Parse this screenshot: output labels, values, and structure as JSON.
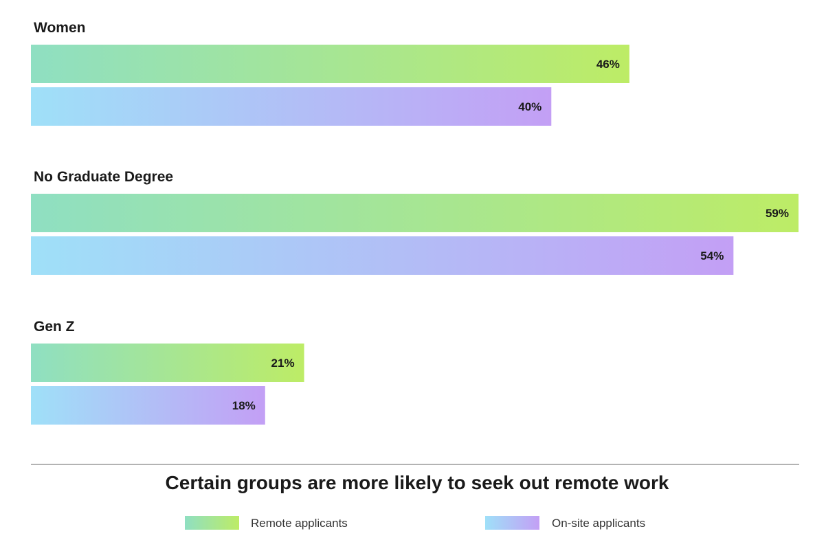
{
  "chart_data": {
    "type": "bar",
    "orientation": "horizontal",
    "title": "Certain groups are more likely to seek out remote work",
    "categories": [
      "Women",
      "No Graduate Degree",
      "Gen Z"
    ],
    "series": [
      {
        "name": "Remote applicants",
        "values": [
          46,
          59,
          21
        ],
        "labels": [
          "46%",
          "59%",
          "21%"
        ],
        "gradient": [
          "#8fdfc2",
          "#bdec66"
        ]
      },
      {
        "name": "On-site applicants",
        "values": [
          40,
          54,
          18
        ],
        "labels": [
          "40%",
          "54%",
          "18%"
        ],
        "gradient": [
          "#9fe0f8",
          "#c39ff5"
        ]
      }
    ],
    "xlim": [
      0,
      59
    ],
    "grid": false,
    "legend_position": "bottom"
  }
}
